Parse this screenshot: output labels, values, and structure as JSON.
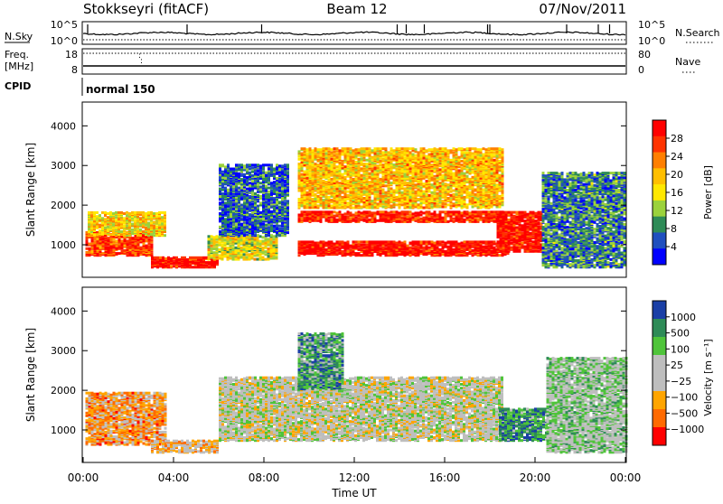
{
  "header": {
    "station": "Stokkseyri (fitACF)",
    "beam": "Beam 12",
    "date": "07/Nov/2011"
  },
  "top_panels": {
    "nsky_label": "N.Sky",
    "nsky_ticks": [
      "10^5",
      "10^0"
    ],
    "nsearch_label": "N.Search",
    "nsearch_ticks": [
      "10^5",
      "10^0"
    ],
    "freq_label_1": "Freq.",
    "freq_label_2": "[MHz]",
    "freq_ticks": [
      "18",
      "8"
    ],
    "nave_label": "Nave",
    "nave_ticks": [
      "80",
      "0"
    ],
    "cpid_label": "CPID",
    "cpid_value": "normal 150"
  },
  "chart_data": [
    {
      "type": "heatmap",
      "name": "power",
      "ylabel": "Slant Range [km]",
      "yticks": [
        "4000",
        "3000",
        "2000",
        "1000"
      ],
      "ylim": [
        180,
        4600
      ],
      "colorbar_label": "Power [dB]",
      "colorbar_ticks": [
        "28",
        "24",
        "20",
        "16",
        "12",
        "8",
        "4"
      ],
      "colorbar_colors": [
        "#ff0000",
        "#ff3300",
        "#ff7f00",
        "#ffbf00",
        "#ffe800",
        "#9bd23c",
        "#2e8b57",
        "#1f4fbf",
        "#0000ff"
      ],
      "bands": [
        {
          "t0": 0.1,
          "t1": 3.0,
          "r0": 700,
          "r1": 1300,
          "level": 0.85
        },
        {
          "t0": 0.2,
          "t1": 3.6,
          "r0": 1200,
          "r1": 1800,
          "level": 0.55
        },
        {
          "t0": 3.0,
          "t1": 6.0,
          "r0": 400,
          "r1": 650,
          "level": 0.95
        },
        {
          "t0": 5.5,
          "t1": 8.5,
          "r0": 600,
          "r1": 1200,
          "level": 0.5
        },
        {
          "t0": 6.0,
          "t1": 9.0,
          "r0": 1200,
          "r1": 3000,
          "level": 0.2
        },
        {
          "t0": 9.5,
          "t1": 18.8,
          "r0": 700,
          "r1": 1050,
          "level": 0.95
        },
        {
          "t0": 9.5,
          "t1": 18.5,
          "r0": 1550,
          "r1": 1800,
          "level": 0.9
        },
        {
          "t0": 9.5,
          "t1": 18.5,
          "r0": 1900,
          "r1": 3400,
          "level": 0.6
        },
        {
          "t0": 18.3,
          "t1": 20.3,
          "r0": 800,
          "r1": 1800,
          "level": 0.95
        },
        {
          "t0": 20.3,
          "t1": 24.0,
          "r0": 400,
          "r1": 2800,
          "level": 0.25
        }
      ]
    },
    {
      "type": "heatmap",
      "name": "velocity",
      "xlabel": "Time UT",
      "ylabel": "Slant Range [km]",
      "yticks": [
        "4000",
        "3000",
        "2000",
        "1000"
      ],
      "ylim": [
        180,
        4600
      ],
      "xticks": [
        "00:00",
        "04:00",
        "08:00",
        "12:00",
        "16:00",
        "20:00",
        "00:00"
      ],
      "xlim": [
        0,
        24
      ],
      "colorbar_label": "Velocity [m s⁻¹]",
      "colorbar_ticks": [
        "1000",
        "500",
        "100",
        "25",
        "−25",
        "−100",
        "−500",
        "−1000"
      ],
      "colorbar_colors": [
        "#1a3fa6",
        "#2e8b57",
        "#4fc43a",
        "#bebebe",
        "#bebebe",
        "#ffa500",
        "#ff6a00",
        "#ff0000"
      ],
      "bands": [
        {
          "t0": 0.1,
          "t1": 3.6,
          "r0": 600,
          "r1": 1900,
          "level": 0.3
        },
        {
          "t0": 3.0,
          "t1": 6.0,
          "r0": 400,
          "r1": 700,
          "level": 0.4
        },
        {
          "t0": 6.0,
          "t1": 18.5,
          "r0": 700,
          "r1": 2300,
          "level": 0.5
        },
        {
          "t0": 9.5,
          "t1": 11.5,
          "r0": 2000,
          "r1": 3400,
          "level": 0.75
        },
        {
          "t0": 18.4,
          "t1": 20.5,
          "r0": 700,
          "r1": 1500,
          "level": 0.8
        },
        {
          "t0": 20.5,
          "t1": 24.0,
          "r0": 400,
          "r1": 2800,
          "level": 0.6
        }
      ]
    }
  ]
}
